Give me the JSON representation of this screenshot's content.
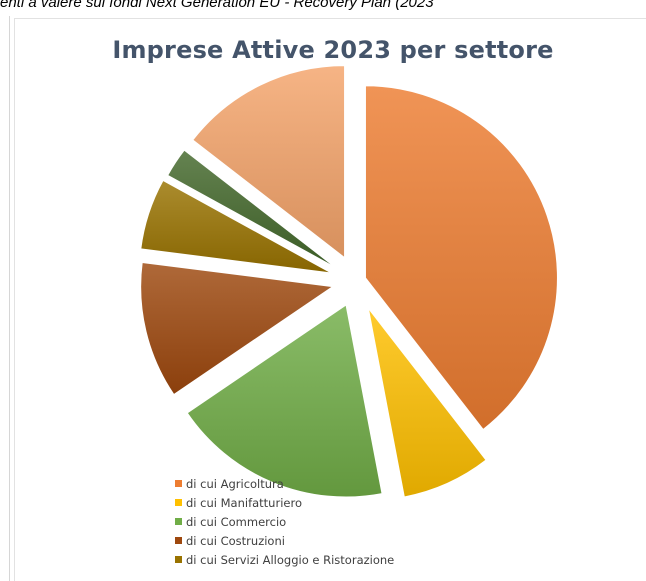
{
  "header_text": "enti a valere sui fondi Next Generation EU - Recovery Plan (2023",
  "chart_data": {
    "type": "pie",
    "title": "Imprese Attive 2023 per settore",
    "slices": [
      {
        "label": "di cui Agricoltura",
        "value": 39.5,
        "color": "#ed7d31",
        "in_legend": true
      },
      {
        "label": "di cui Manifatturiero",
        "value": 7.5,
        "color": "#ffc000",
        "in_legend": true
      },
      {
        "label": "di cui Commercio",
        "value": 18.5,
        "color": "#70ad47",
        "in_legend": true
      },
      {
        "label": "di cui Costruzioni",
        "value": 11.5,
        "color": "#9e480e",
        "in_legend": true
      },
      {
        "label": "di cui Servizi Alloggio e Ristorazione",
        "value": 6.0,
        "color": "#997300",
        "in_legend": true
      },
      {
        "label": "",
        "value": 2.5,
        "color": "#43682b",
        "in_legend": false
      },
      {
        "label": "",
        "value": 14.5,
        "color": "#f4a46a",
        "in_legend": false
      }
    ],
    "legend_position": "bottom-left"
  }
}
